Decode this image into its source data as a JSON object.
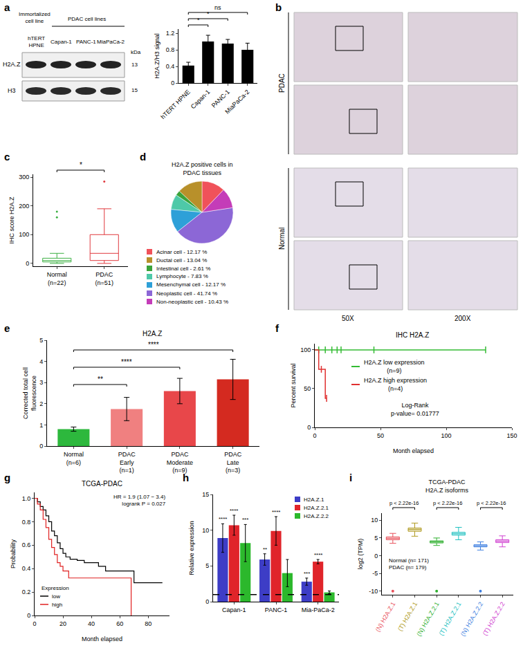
{
  "chart_data": [
    {
      "panel": "a",
      "type": "bar",
      "categories": [
        "hTERT HPNE",
        "Capan-1",
        "PANC-1",
        "MiaPaCa-2"
      ],
      "values": [
        0.42,
        1.0,
        0.95,
        0.8
      ],
      "errors": [
        0.08,
        0.15,
        0.1,
        0.16
      ],
      "color": "#000000",
      "ylabel": "H2A.Z/H3 signal",
      "ylim": [
        0,
        1.3
      ],
      "yticks": [
        0,
        0.4,
        0.8,
        1.2
      ],
      "significance": [
        {
          "pair": [
            "hTERT HPNE",
            "Capan-1"
          ],
          "label": "*"
        },
        {
          "pair": [
            "hTERT HPNE",
            "PANC-1"
          ],
          "label": "*"
        },
        {
          "pair": [
            "hTERT HPNE",
            "MiaPaCa-2"
          ],
          "label": "ns"
        }
      ]
    },
    {
      "panel": "c",
      "type": "box",
      "categories": [
        "Normal\n(n=22)",
        "PDAC\n(n=51)"
      ],
      "boxes": [
        {
          "q1": 5,
          "median": 10,
          "q3": 18,
          "lowerfence": 0,
          "upperfence": 35,
          "outliers": [
            160,
            180
          ]
        },
        {
          "q1": 10,
          "median": 35,
          "q3": 100,
          "lowerfence": 0,
          "upperfence": 190,
          "outliers": [
            285
          ]
        }
      ],
      "colors": [
        "#3cb043",
        "#e0393e"
      ],
      "ylabel": "IHC score H2A.Z",
      "ylim": [
        -10,
        310
      ],
      "yticks": [
        0,
        100,
        200,
        300
      ],
      "significance": [
        {
          "pair": [
            "Normal\n(n=22)",
            "PDAC\n(n=51)"
          ],
          "label": "*"
        }
      ]
    },
    {
      "panel": "d",
      "type": "pie",
      "title": "H2A.Z positive cells in\nPDAC tissues",
      "categories": [
        "Acinar cell - 12.17 %",
        "Ductal cell - 13.04 %",
        "Intestinal cell - 2.61 %",
        "Lymphocyte - 7.83 %",
        "Mesenchymal cell - 12.17 %",
        "Neoplastic cell - 41.74 %",
        "Non-neoplastic cell - 10.43 %"
      ],
      "values": [
        12.17,
        13.04,
        2.61,
        7.83,
        12.17,
        41.74,
        10.43
      ],
      "colors": [
        "#f0525a",
        "#b8902a",
        "#3aa33a",
        "#4ec9a8",
        "#2ea0d8",
        "#8c67d6",
        "#c43cb8"
      ]
    },
    {
      "panel": "e",
      "type": "bar",
      "title": "H2A.Z",
      "categories": [
        "Normal\n(n=6)",
        "PDAC\nEarly\n(n=1)",
        "PDAC\nModerate\n(n=9)",
        "PDAC\nLate\n(n=3)"
      ],
      "values": [
        0.8,
        1.75,
        2.6,
        3.15
      ],
      "errors": [
        0.1,
        0.55,
        0.6,
        0.95
      ],
      "colors": [
        "#2db83d",
        "#f08080",
        "#e8474a",
        "#d42a20"
      ],
      "ylabel": "Corrected total cell\nfluorescence",
      "ylim": [
        0,
        5
      ],
      "yticks": [
        0,
        1,
        2,
        3,
        4,
        5
      ],
      "significance": [
        {
          "pair": [
            "Normal\n(n=6)",
            "PDAC\nEarly\n(n=1)"
          ],
          "label": "**"
        },
        {
          "pair": [
            "Normal\n(n=6)",
            "PDAC\nModerate\n(n=9)"
          ],
          "label": "****"
        },
        {
          "pair": [
            "Normal\n(n=6)",
            "PDAC\nLate\n(n=3)"
          ],
          "label": "****"
        }
      ]
    },
    {
      "panel": "f",
      "type": "line",
      "title": "IHC H2A.Z",
      "xlabel": "Month elapsed",
      "ylabel": "Percent survival",
      "xlim": [
        0,
        150
      ],
      "xticks": [
        0,
        50,
        100,
        150
      ],
      "ylim": [
        0,
        108
      ],
      "yticks": [
        0,
        50,
        100
      ],
      "series": [
        {
          "name": "H2A.Z low expression\n(n=9)",
          "color": "#33bb33",
          "x": [
            0,
            130
          ],
          "values": [
            100,
            100
          ],
          "censored_x": [
            3,
            8,
            13,
            17,
            20,
            45,
            130
          ],
          "censored_values": [
            100,
            100,
            100,
            100,
            100,
            100,
            100
          ]
        },
        {
          "name": "H2A.Z high expression\n(n=4)",
          "color": "#e03030",
          "x": [
            0,
            3,
            8,
            9
          ],
          "values": [
            100,
            75,
            37.5,
            37.5
          ],
          "censored_x": [
            5,
            9
          ],
          "censored_values": [
            75,
            37.5
          ]
        }
      ],
      "annotations": [
        "Log-Rank\np-value= 0.01777"
      ]
    },
    {
      "panel": "g",
      "type": "line",
      "title": "TCGA-PDAC",
      "xlabel": "Month elapsed",
      "ylabel": "Probability",
      "xlim": [
        0,
        95
      ],
      "xticks": [
        0,
        20,
        40,
        60,
        80
      ],
      "ylim": [
        0,
        1.05
      ],
      "yticks": [
        0,
        0.2,
        0.4,
        0.6,
        0.8,
        {
          "value": 1,
          "label": "1.0"
        }
      ],
      "legend_title": "Expression",
      "series": [
        {
          "name": "low",
          "color": "#000000",
          "x": [
            0,
            2,
            4,
            6,
            8,
            10,
            12,
            14,
            16,
            18,
            20,
            22,
            25,
            30,
            35,
            45,
            50,
            70,
            90
          ],
          "values": [
            1,
            0.97,
            0.93,
            0.9,
            0.85,
            0.8,
            0.72,
            0.68,
            0.62,
            0.57,
            0.53,
            0.5,
            0.48,
            0.47,
            0.45,
            0.42,
            0.38,
            0.28,
            0.28
          ]
        },
        {
          "name": "high",
          "color": "#e02020",
          "x": [
            0,
            2,
            4,
            6,
            8,
            10,
            12,
            14,
            16,
            18,
            20,
            24,
            30,
            45,
            60,
            66,
            68
          ],
          "values": [
            1,
            0.95,
            0.9,
            0.82,
            0.75,
            0.65,
            0.58,
            0.52,
            0.45,
            0.42,
            0.38,
            0.32,
            0.32,
            0.32,
            0.32,
            0.32,
            0
          ]
        }
      ],
      "annotations": [
        "HR = 1.9 (1.07 − 3.4)\nlogrank P = 0.027"
      ]
    },
    {
      "panel": "h",
      "type": "bar",
      "categories": [
        "Capan-1",
        "PANC-1",
        "Mia-PaCa-2"
      ],
      "ylabel": "Relative expression",
      "ylim": [
        0,
        15
      ],
      "yticks": [
        0,
        5,
        10,
        15
      ],
      "reference_line": 1,
      "series": [
        {
          "name": "H2A.Z.1",
          "color": "#3d3dc6",
          "values": [
            8.9,
            5.9,
            2.8
          ],
          "errors": [
            2.0,
            0.8,
            0.5
          ],
          "significance": [
            "****",
            "**",
            "***"
          ]
        },
        {
          "name": "H2A.Z.2.1",
          "color": "#e0242a",
          "values": [
            10.7,
            9.9,
            5.6
          ],
          "errors": [
            1.4,
            2.0,
            0.3
          ],
          "significance": [
            "****",
            "****",
            "****"
          ]
        },
        {
          "name": "H2A.Z.2.2",
          "color": "#2cb82c",
          "values": [
            8.2,
            4.0,
            1.3
          ],
          "errors": [
            2.6,
            1.9,
            0.2
          ],
          "significance": [
            "***",
            null,
            null
          ]
        }
      ]
    },
    {
      "panel": "i",
      "type": "box",
      "title": "TCGA-PDAC\nH2A.Z isoforms",
      "categories": [
        "(N) H2A.Z.1",
        "(T) H2A.Z.1",
        "(N) H2A.Z.2.1",
        "(T) H2A.Z.2.1",
        "(N) H2A.Z.2.2",
        "(T) H2A.Z.2.2"
      ],
      "boxes": [
        {
          "q1": 4.5,
          "median": 4.9,
          "q3": 5.3,
          "lowerfence": 3.5,
          "upperfence": 6.3,
          "outliers": [
            -10
          ]
        },
        {
          "q1": 6.9,
          "median": 7.4,
          "q3": 7.8,
          "lowerfence": 5.5,
          "upperfence": 9.2,
          "outliers": []
        },
        {
          "q1": 3.6,
          "median": 3.9,
          "q3": 4.2,
          "lowerfence": 2.9,
          "upperfence": 5.0,
          "outliers": [
            -10
          ]
        },
        {
          "q1": 5.8,
          "median": 6.2,
          "q3": 6.6,
          "lowerfence": 4.5,
          "upperfence": 8.0,
          "outliers": []
        },
        {
          "q1": 2.5,
          "median": 2.8,
          "q3": 3.1,
          "lowerfence": 1.6,
          "upperfence": 3.9,
          "outliers": [
            -10
          ]
        },
        {
          "q1": 3.7,
          "median": 4.1,
          "q3": 4.5,
          "lowerfence": 2.5,
          "upperfence": 5.6,
          "outliers": []
        }
      ],
      "colors": [
        "#e8505a",
        "#b09a20",
        "#30b030",
        "#20c0c0",
        "#4080e0",
        "#d040d0"
      ],
      "ylabel": "log2 (TPM)",
      "ylim": [
        -11,
        12
      ],
      "yticks": [
        -10,
        -5,
        0,
        5,
        10
      ],
      "significance": [
        {
          "pair": [
            "(N) H2A.Z.1",
            "(T) H2A.Z.1"
          ],
          "label": "p < 2.22e-16"
        },
        {
          "pair": [
            "(N) H2A.Z.2.1",
            "(T) H2A.Z.2.1"
          ],
          "label": "p < 2.22e-16"
        },
        {
          "pair": [
            "(N) H2A.Z.2.2",
            "(T) H2A.Z.2.2"
          ],
          "label": "p < 2.22e-16"
        }
      ],
      "annotations": [
        "Normal (n= 171)\nPDAC (n= 179)"
      ]
    }
  ],
  "blot": {
    "groups": [
      "Immortalized\ncell line",
      "PDAC cell lines"
    ],
    "lanes": [
      "hTERT\nHPNE",
      "Capan-1",
      "PANC-1",
      "MiaPaCa-2"
    ],
    "rows": [
      "H2A.Z",
      "H3"
    ],
    "unit": "kDa",
    "markers": [
      13,
      15
    ]
  },
  "micrographs": {
    "panel": "b",
    "rows": [
      "PDAC",
      "Normal"
    ],
    "magnifications": [
      "50X",
      "200X"
    ]
  }
}
